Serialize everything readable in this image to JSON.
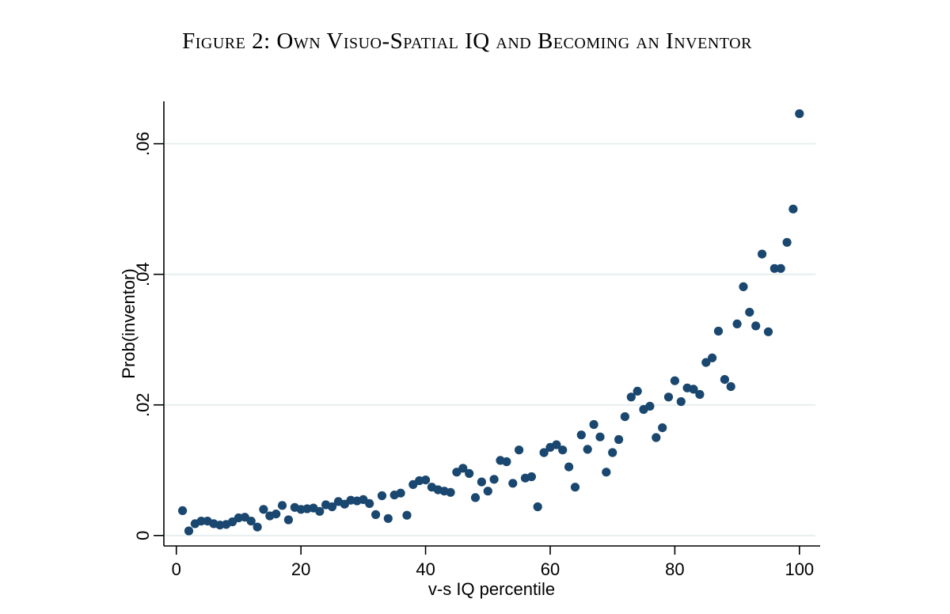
{
  "figure": {
    "title": "Figure 2: Own Visuo-Spatial IQ and Becoming an Inventor"
  },
  "chart_data": {
    "type": "scatter",
    "title": "Figure 2: Own Visuo-Spatial IQ and Becoming an Inventor",
    "xlabel": "v-s IQ percentile",
    "ylabel": "Prob(inventor)",
    "xlim": [
      -2,
      103.2
    ],
    "ylim": [
      -0.0016,
      0.0665
    ],
    "x_ticks": [
      0,
      20,
      40,
      60,
      80,
      100
    ],
    "y_ticks": [
      0,
      0.02,
      0.04,
      0.06
    ],
    "y_tick_labels": [
      "0",
      ".02",
      ".04",
      ".06"
    ],
    "grid": true,
    "legend": false,
    "marker_color": "#1a476f",
    "gridline_color": "#e5efef",
    "axis_color": "#000000",
    "points": [
      [
        1,
        0.0038
      ],
      [
        2,
        0.0007
      ],
      [
        3,
        0.0018
      ],
      [
        4,
        0.0022
      ],
      [
        5,
        0.0022
      ],
      [
        6,
        0.0018
      ],
      [
        7,
        0.0016
      ],
      [
        8,
        0.0017
      ],
      [
        9,
        0.0021
      ],
      [
        10,
        0.0027
      ],
      [
        11,
        0.0028
      ],
      [
        12,
        0.0022
      ],
      [
        13,
        0.0013
      ],
      [
        14,
        0.004
      ],
      [
        15,
        0.003
      ],
      [
        16,
        0.0033
      ],
      [
        17,
        0.0046
      ],
      [
        18,
        0.0024
      ],
      [
        19,
        0.0043
      ],
      [
        20,
        0.004
      ],
      [
        21,
        0.0041
      ],
      [
        22,
        0.0042
      ],
      [
        23,
        0.0037
      ],
      [
        24,
        0.0047
      ],
      [
        25,
        0.0044
      ],
      [
        26,
        0.0052
      ],
      [
        27,
        0.0048
      ],
      [
        28,
        0.0054
      ],
      [
        29,
        0.0053
      ],
      [
        30,
        0.0055
      ],
      [
        31,
        0.0049
      ],
      [
        32,
        0.0032
      ],
      [
        33,
        0.0061
      ],
      [
        34,
        0.0026
      ],
      [
        35,
        0.0062
      ],
      [
        36,
        0.0065
      ],
      [
        37,
        0.0031
      ],
      [
        38,
        0.0078
      ],
      [
        39,
        0.0084
      ],
      [
        40,
        0.0085
      ],
      [
        41,
        0.0074
      ],
      [
        42,
        0.007
      ],
      [
        43,
        0.0068
      ],
      [
        44,
        0.0066
      ],
      [
        45,
        0.0097
      ],
      [
        46,
        0.0103
      ],
      [
        47,
        0.0095
      ],
      [
        48,
        0.0058
      ],
      [
        49,
        0.0082
      ],
      [
        50,
        0.0068
      ],
      [
        51,
        0.0086
      ],
      [
        52,
        0.0115
      ],
      [
        53,
        0.0113
      ],
      [
        54,
        0.008
      ],
      [
        55,
        0.0131
      ],
      [
        56,
        0.0088
      ],
      [
        57,
        0.009
      ],
      [
        58,
        0.0044
      ],
      [
        59,
        0.0127
      ],
      [
        60,
        0.0135
      ],
      [
        61,
        0.0139
      ],
      [
        62,
        0.0131
      ],
      [
        63,
        0.0105
      ],
      [
        64,
        0.0074
      ],
      [
        65,
        0.0154
      ],
      [
        66,
        0.0132
      ],
      [
        67,
        0.017
      ],
      [
        68,
        0.0151
      ],
      [
        69,
        0.0097
      ],
      [
        70,
        0.0127
      ],
      [
        71,
        0.0147
      ],
      [
        72,
        0.0182
      ],
      [
        73,
        0.0212
      ],
      [
        74,
        0.0221
      ],
      [
        75,
        0.0193
      ],
      [
        76,
        0.0198
      ],
      [
        77,
        0.015
      ],
      [
        78,
        0.0165
      ],
      [
        79,
        0.0212
      ],
      [
        80,
        0.0237
      ],
      [
        81,
        0.0205
      ],
      [
        82,
        0.0226
      ],
      [
        83,
        0.0224
      ],
      [
        84,
        0.0216
      ],
      [
        85,
        0.0265
      ],
      [
        86,
        0.0272
      ],
      [
        87,
        0.0313
      ],
      [
        88,
        0.0239
      ],
      [
        89,
        0.0228
      ],
      [
        90,
        0.0324
      ],
      [
        91,
        0.0381
      ],
      [
        92,
        0.0342
      ],
      [
        93,
        0.0321
      ],
      [
        94,
        0.0431
      ],
      [
        95,
        0.0312
      ],
      [
        96,
        0.0409
      ],
      [
        97,
        0.0409
      ],
      [
        98,
        0.0449
      ],
      [
        99,
        0.05
      ],
      [
        100,
        0.0646
      ]
    ]
  }
}
